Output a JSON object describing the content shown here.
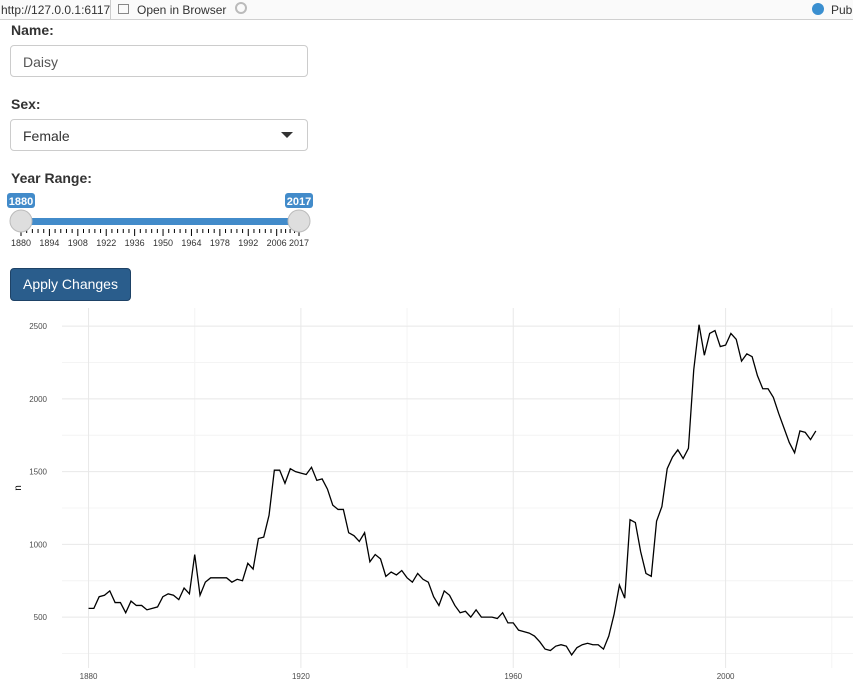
{
  "browser_bar": {
    "url": "http://127.0.0.1:6117",
    "open_button": "Open in Browser",
    "publish_button": "Publish"
  },
  "form": {
    "name": {
      "label": "Name:",
      "value": "Daisy"
    },
    "sex": {
      "label": "Sex:",
      "value": "Female"
    },
    "year_range": {
      "label": "Year Range:",
      "min": 1880,
      "max": 2017,
      "from": 1880,
      "to": 2017,
      "ticks": [
        1880,
        1894,
        1908,
        1922,
        1936,
        1950,
        1964,
        1978,
        1992,
        2006,
        2017
      ]
    },
    "apply_button": "Apply Changes"
  },
  "chart_data": {
    "type": "line",
    "y_label": "n",
    "color": "#000000",
    "grid": true,
    "xlim": [
      1875,
      2024
    ],
    "ylim": [
      150,
      2625
    ],
    "xticks": [
      1880,
      1920,
      1960,
      2000
    ],
    "yticks": [
      500,
      1000,
      1500,
      2000,
      2500
    ],
    "xminor": [
      1900,
      1940,
      1980,
      2020
    ],
    "yminor": [
      250,
      750,
      1250,
      1750,
      2250
    ],
    "x": [
      1880,
      1881,
      1882,
      1883,
      1884,
      1885,
      1886,
      1887,
      1888,
      1889,
      1890,
      1891,
      1892,
      1893,
      1894,
      1895,
      1896,
      1897,
      1898,
      1899,
      1900,
      1901,
      1902,
      1903,
      1904,
      1905,
      1906,
      1907,
      1908,
      1909,
      1910,
      1911,
      1912,
      1913,
      1914,
      1915,
      1916,
      1917,
      1918,
      1919,
      1920,
      1921,
      1922,
      1923,
      1924,
      1925,
      1926,
      1927,
      1928,
      1929,
      1930,
      1931,
      1932,
      1933,
      1934,
      1935,
      1936,
      1937,
      1938,
      1939,
      1940,
      1941,
      1942,
      1943,
      1944,
      1945,
      1946,
      1947,
      1948,
      1949,
      1950,
      1951,
      1952,
      1953,
      1954,
      1955,
      1956,
      1957,
      1958,
      1959,
      1960,
      1961,
      1962,
      1963,
      1964,
      1965,
      1966,
      1967,
      1968,
      1969,
      1970,
      1971,
      1972,
      1973,
      1974,
      1975,
      1976,
      1977,
      1978,
      1979,
      1980,
      1981,
      1982,
      1983,
      1984,
      1985,
      1986,
      1987,
      1988,
      1989,
      1990,
      1991,
      1992,
      1993,
      1994,
      1995,
      1996,
      1997,
      1998,
      1999,
      2000,
      2001,
      2002,
      2003,
      2004,
      2005,
      2006,
      2007,
      2008,
      2009,
      2010,
      2011,
      2012,
      2013,
      2014,
      2015,
      2016,
      2017
    ],
    "values": [
      560,
      560,
      640,
      650,
      680,
      600,
      600,
      530,
      610,
      580,
      580,
      550,
      560,
      570,
      640,
      660,
      650,
      620,
      700,
      660,
      930,
      650,
      740,
      770,
      770,
      770,
      770,
      740,
      760,
      750,
      870,
      830,
      1040,
      1050,
      1200,
      1510,
      1510,
      1420,
      1520,
      1500,
      1490,
      1480,
      1530,
      1440,
      1450,
      1380,
      1270,
      1240,
      1240,
      1080,
      1060,
      1020,
      1080,
      880,
      930,
      900,
      780,
      810,
      790,
      820,
      770,
      740,
      800,
      760,
      740,
      640,
      580,
      680,
      650,
      580,
      530,
      540,
      500,
      550,
      500,
      500,
      500,
      490,
      530,
      460,
      460,
      410,
      400,
      390,
      370,
      330,
      280,
      270,
      300,
      310,
      300,
      240,
      290,
      310,
      320,
      310,
      310,
      280,
      370,
      520,
      720,
      630,
      1170,
      1150,
      950,
      800,
      780,
      1160,
      1260,
      1520,
      1600,
      1650,
      1590,
      1660,
      2200,
      2510,
      2300,
      2450,
      2470,
      2360,
      2370,
      2450,
      2410,
      2260,
      2310,
      2290,
      2160,
      2070,
      2070,
      2010,
      1900,
      1800,
      1700,
      1630,
      1780,
      1770,
      1720,
      1780
    ]
  }
}
